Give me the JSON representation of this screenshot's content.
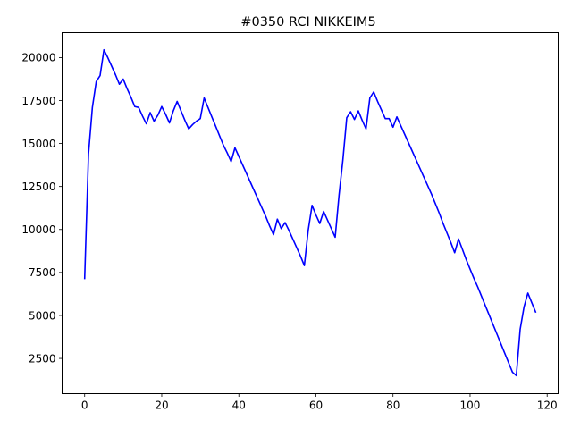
{
  "chart_data": {
    "type": "line",
    "title": "#0350 RCI NIKKEIM5",
    "xlabel": "",
    "ylabel": "",
    "xlim": [
      -5.85,
      122.85
    ],
    "ylim": [
      450,
      21450
    ],
    "grid": false,
    "x_ticks": [
      0,
      20,
      40,
      60,
      80,
      100,
      120
    ],
    "y_ticks": [
      2500,
      5000,
      7500,
      10000,
      12500,
      15000,
      17500,
      20000
    ],
    "series": [
      {
        "color": "#0000ff",
        "x": [
          0,
          1,
          2,
          3,
          4,
          5,
          6,
          7,
          8,
          9,
          10,
          11,
          12,
          13,
          14,
          15,
          16,
          17,
          18,
          19,
          20,
          21,
          22,
          23,
          24,
          25,
          26,
          27,
          28,
          29,
          30,
          31,
          32,
          33,
          34,
          35,
          36,
          37,
          38,
          39,
          40,
          41,
          42,
          43,
          44,
          45,
          46,
          47,
          48,
          49,
          50,
          51,
          52,
          53,
          54,
          55,
          56,
          57,
          58,
          59,
          60,
          61,
          62,
          63,
          64,
          65,
          66,
          67,
          68,
          69,
          70,
          71,
          72,
          73,
          74,
          75,
          76,
          77,
          78,
          79,
          80,
          81,
          82,
          83,
          84,
          85,
          86,
          87,
          88,
          89,
          90,
          91,
          92,
          93,
          94,
          95,
          96,
          97,
          98,
          99,
          100,
          101,
          102,
          103,
          104,
          105,
          106,
          107,
          108,
          109,
          110,
          111,
          112,
          113,
          114,
          115,
          116,
          117
        ],
        "y": [
          7150,
          14400,
          17100,
          18600,
          18950,
          20450,
          20000,
          19500,
          19000,
          18450,
          18750,
          18200,
          17700,
          17150,
          17100,
          16600,
          16150,
          16800,
          16300,
          16650,
          17150,
          16700,
          16200,
          16900,
          17450,
          16900,
          16350,
          15850,
          16100,
          16300,
          16450,
          17650,
          17100,
          16550,
          16000,
          15450,
          14900,
          14450,
          13950,
          14750,
          14250,
          13750,
          13250,
          12750,
          12250,
          11750,
          11250,
          10750,
          10200,
          9700,
          10600,
          10050,
          10400,
          9950,
          9450,
          8950,
          8450,
          7900,
          9950,
          11400,
          10850,
          10350,
          11050,
          10550,
          10050,
          9550,
          12000,
          14050,
          16500,
          16850,
          16400,
          16900,
          16350,
          15850,
          17650,
          18000,
          17450,
          16950,
          16450,
          16450,
          15950,
          16550,
          16050,
          15550,
          15050,
          14550,
          14050,
          13550,
          13050,
          12550,
          12050,
          11500,
          10950,
          10350,
          9800,
          9250,
          8650,
          9450,
          8850,
          8250,
          7700,
          7150,
          6650,
          6100,
          5550,
          5000,
          4450,
          3900,
          3350,
          2800,
          2250,
          1700,
          1500,
          4200,
          5500,
          6300,
          5750,
          5200
        ]
      }
    ]
  }
}
